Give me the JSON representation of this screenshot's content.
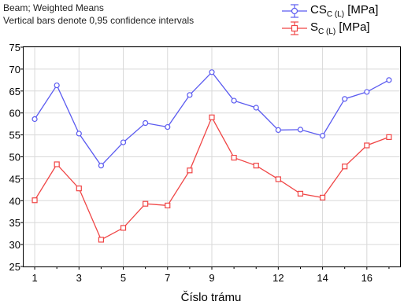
{
  "chart_data": {
    "type": "line",
    "title": "Beam; Weighted Means",
    "subtitle": "Vertical bars denote 0,95 confidence intervals",
    "xlabel": "Číslo trámu",
    "ylabel": "",
    "x": [
      1,
      2,
      3,
      4,
      5,
      6,
      7,
      8,
      9,
      10,
      11,
      12,
      13,
      14,
      15,
      16,
      17
    ],
    "xticks": [
      "1",
      "3",
      "5",
      "7",
      "9",
      "12",
      "14",
      "16"
    ],
    "ylim": [
      25,
      75
    ],
    "yticks": [
      "25",
      "30",
      "35",
      "40",
      "45",
      "50",
      "55",
      "60",
      "65",
      "70",
      "75"
    ],
    "grid": true,
    "legend_position": "top-right",
    "series": [
      {
        "name": "CS",
        "name_sub": "C (L)",
        "name_unit": "[MPa]",
        "color": "#5B5BF0",
        "marker": "circle",
        "values": [
          58.6,
          66.3,
          55.3,
          48.0,
          53.3,
          57.7,
          56.8,
          64.1,
          69.3,
          62.8,
          61.2,
          56.1,
          56.2,
          54.8,
          63.2,
          64.8,
          67.5
        ]
      },
      {
        "name": "S",
        "name_sub": "C (L)",
        "name_unit": "[MPa]",
        "color": "#F04646",
        "marker": "square",
        "values": [
          40.1,
          48.3,
          42.8,
          31.1,
          33.8,
          39.3,
          38.9,
          46.9,
          59.0,
          49.8,
          48.0,
          44.9,
          41.6,
          40.7,
          47.8,
          52.6,
          54.5
        ]
      }
    ]
  }
}
